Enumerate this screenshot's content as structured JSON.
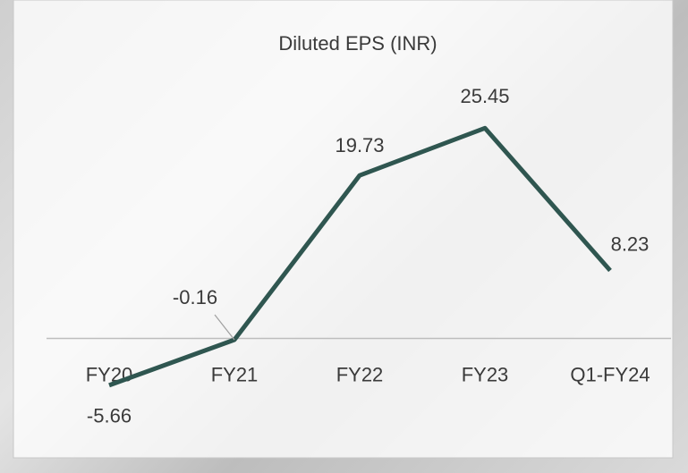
{
  "chart_data": {
    "type": "line",
    "title": "Diluted EPS (INR)",
    "categories": [
      "FY20",
      "FY21",
      "FY22",
      "FY23",
      "Q1-FY24"
    ],
    "series": [
      {
        "name": "Diluted EPS",
        "color": "#2f5650",
        "values": [
          -5.66,
          -0.16,
          19.73,
          25.45,
          8.23
        ]
      }
    ],
    "ylim": [
      -10,
      35
    ]
  }
}
